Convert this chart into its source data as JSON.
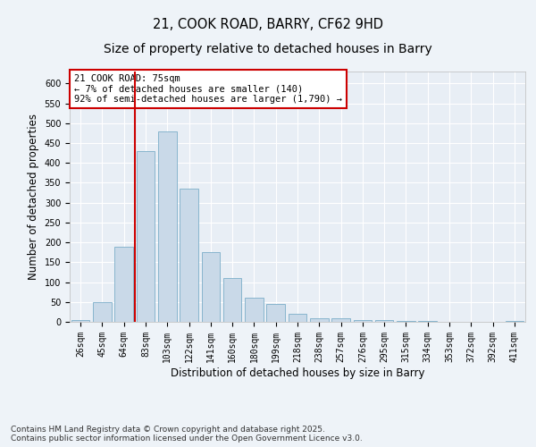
{
  "title1": "21, COOK ROAD, BARRY, CF62 9HD",
  "title2": "Size of property relative to detached houses in Barry",
  "xlabel": "Distribution of detached houses by size in Barry",
  "ylabel": "Number of detached properties",
  "categories": [
    "26sqm",
    "45sqm",
    "64sqm",
    "83sqm",
    "103sqm",
    "122sqm",
    "141sqm",
    "160sqm",
    "180sqm",
    "199sqm",
    "218sqm",
    "238sqm",
    "257sqm",
    "276sqm",
    "295sqm",
    "315sqm",
    "334sqm",
    "353sqm",
    "372sqm",
    "392sqm",
    "411sqm"
  ],
  "values": [
    5,
    50,
    190,
    430,
    480,
    335,
    175,
    110,
    60,
    45,
    20,
    10,
    10,
    5,
    5,
    3,
    2,
    1,
    1,
    1,
    2
  ],
  "bar_color": "#c9d9e8",
  "bar_edge_color": "#7baec8",
  "vline_color": "#cc0000",
  "vline_x": 2.5,
  "annotation_text": "21 COOK ROAD: 75sqm\n← 7% of detached houses are smaller (140)\n92% of semi-detached houses are larger (1,790) →",
  "annotation_box_color": "#ffffff",
  "annotation_box_edge": "#cc0000",
  "ylim": [
    0,
    630
  ],
  "yticks": [
    0,
    50,
    100,
    150,
    200,
    250,
    300,
    350,
    400,
    450,
    500,
    550,
    600
  ],
  "footer": "Contains HM Land Registry data © Crown copyright and database right 2025.\nContains public sector information licensed under the Open Government Licence v3.0.",
  "bg_color": "#eef3f8",
  "plot_bg_color": "#e8eef5",
  "grid_color": "#ffffff",
  "title_fontsize": 10.5,
  "subtitle_fontsize": 10,
  "axis_label_fontsize": 8.5,
  "tick_fontsize": 7,
  "footer_fontsize": 6.5,
  "annotation_fontsize": 7.5
}
